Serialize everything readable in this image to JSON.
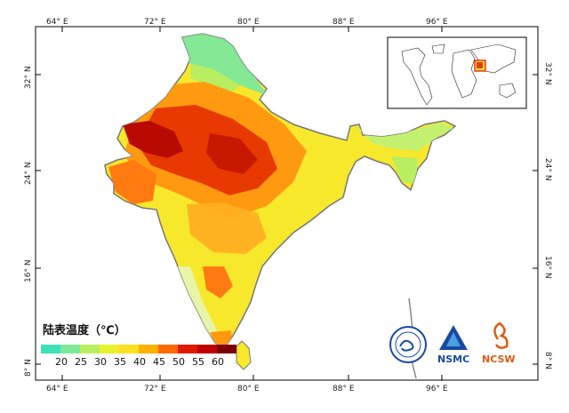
{
  "map": {
    "frame": {
      "top_labels": [
        "64° E",
        "72° E",
        "80° E",
        "88° E",
        "96° E"
      ],
      "bottom_labels": [
        "64° E",
        "72° E",
        "80° E",
        "88° E",
        "96° E"
      ],
      "left_labels": [
        "32° N",
        "24° N",
        "16° N",
        "8° N"
      ],
      "right_labels": [
        "32° N",
        "24° N",
        "16° N",
        "8° N"
      ]
    },
    "legend": {
      "title": "陆表温度（℃）",
      "labels": [
        "20",
        "25",
        "30",
        "35",
        "40",
        "45",
        "50",
        "55",
        "60"
      ],
      "colors": [
        "#3fe0b8",
        "#7ee89a",
        "#b8ee60",
        "#e8f030",
        "#ffe020",
        "#ffb000",
        "#ff6a00",
        "#e01a00",
        "#c00000",
        "#7a0000"
      ]
    },
    "logos": {
      "nsmc_text": "NSMC",
      "ncsw_text": "NCSW"
    },
    "colors": {
      "cold": "#7ee89a",
      "yellow": "#f7e82c",
      "orange": "#ff9a10",
      "red": "#e83a00",
      "dark_red": "#b80a00",
      "outline": "#777777"
    }
  }
}
